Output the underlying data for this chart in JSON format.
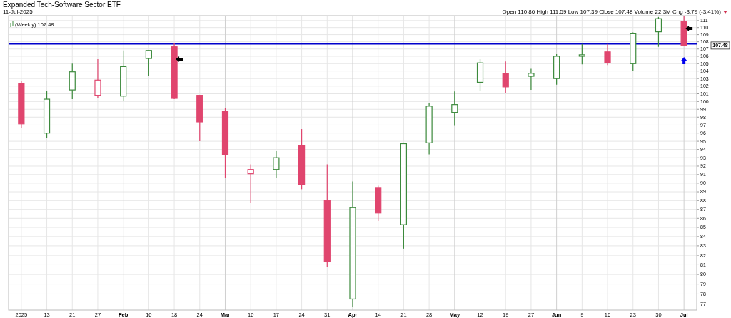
{
  "chart_data": {
    "type": "candlestick",
    "title": "Expanded Tech-Software Sector ETF",
    "subtitle": "11-Jul-2025",
    "categories": [
      "2025",
      "13",
      "21",
      "27",
      "Feb",
      "10",
      "18",
      "24",
      "Mar",
      "10",
      "17",
      "24",
      "31",
      "Apr",
      "14",
      "21",
      "28",
      "May",
      "12",
      "19",
      "27",
      "Jun",
      "9",
      "16",
      "23",
      "30",
      "Jul"
    ],
    "ohlc": [
      [
        102.3,
        102.7,
        96.6,
        97.15
      ],
      [
        96.0,
        101.4,
        95.4,
        100.3
      ],
      [
        101.5,
        105.0,
        100.3,
        103.9
      ],
      [
        100.8,
        105.6,
        100.5,
        102.8
      ],
      [
        100.7,
        106.8,
        100.1,
        104.6
      ],
      [
        105.7,
        106.8,
        103.4,
        106.8
      ],
      [
        107.3,
        107.8,
        100.3,
        100.4
      ],
      [
        100.8,
        100.8,
        95.0,
        97.4
      ],
      [
        98.7,
        99.2,
        90.6,
        93.4
      ],
      [
        91.1,
        92.2,
        87.7,
        91.6
      ],
      [
        91.6,
        93.8,
        90.6,
        93.0
      ],
      [
        94.5,
        96.5,
        89.3,
        89.8
      ],
      [
        88.0,
        92.2,
        80.8,
        81.3
      ],
      [
        77.5,
        90.2,
        76.7,
        87.2
      ],
      [
        89.5,
        89.7,
        85.7,
        86.6
      ],
      [
        85.3,
        94.7,
        82.7,
        94.7
      ],
      [
        94.8,
        99.8,
        93.4,
        99.4
      ],
      [
        98.6,
        101.3,
        96.9,
        99.6
      ],
      [
        102.5,
        105.6,
        101.3,
        105.1
      ],
      [
        103.7,
        105.3,
        101.1,
        101.9
      ],
      [
        103.3,
        104.3,
        101.5,
        103.7
      ],
      [
        103.0,
        106.3,
        102.2,
        106.0
      ],
      [
        106.0,
        107.7,
        104.9,
        106.2
      ],
      [
        106.6,
        107.7,
        104.8,
        105.1
      ],
      [
        105.0,
        109.3,
        104.0,
        109.2
      ],
      [
        109.4,
        111.5,
        107.3,
        111.27
      ],
      [
        110.86,
        111.59,
        107.39,
        107.48
      ]
    ],
    "colors": [
      "#e0456e",
      "#3c8a3c",
      "#3c8a3c",
      "#e0456e",
      "#3c8a3c",
      "#3c8a3c",
      "#e0456e",
      "#e0456e",
      "#e0456e",
      "#e0456e",
      "#3c8a3c",
      "#e0456e",
      "#e0456e",
      "#3c8a3c",
      "#e0456e",
      "#3c8a3c",
      "#3c8a3c",
      "#3c8a3c",
      "#3c8a3c",
      "#e0456e",
      "#3c8a3c",
      "#3c8a3c",
      "#3c8a3c",
      "#e0456e",
      "#3c8a3c",
      "#3c8a3c",
      "#e0456e"
    ],
    "log": true,
    "ylim": [
      76.4,
      111.7
    ],
    "yticks": [
      77,
      78,
      79,
      80,
      81,
      82,
      83,
      84,
      85,
      86,
      87,
      88,
      89,
      90,
      91,
      92,
      93,
      94,
      95,
      96,
      97,
      98,
      99,
      100,
      101,
      102,
      103,
      104,
      105,
      106,
      107,
      108,
      109,
      110,
      111
    ],
    "grid": true,
    "ref_lines": [
      {
        "axis": "y",
        "value": 107.7,
        "color": "#0000cc"
      }
    ],
    "annotations": [
      "Open 110.86 High 111.59 Low 107.39 Close 107.48 Volume 22.3M Chg -3.79 (-3.41%)",
      "(Weekly) 107.48",
      "107.48"
    ]
  }
}
